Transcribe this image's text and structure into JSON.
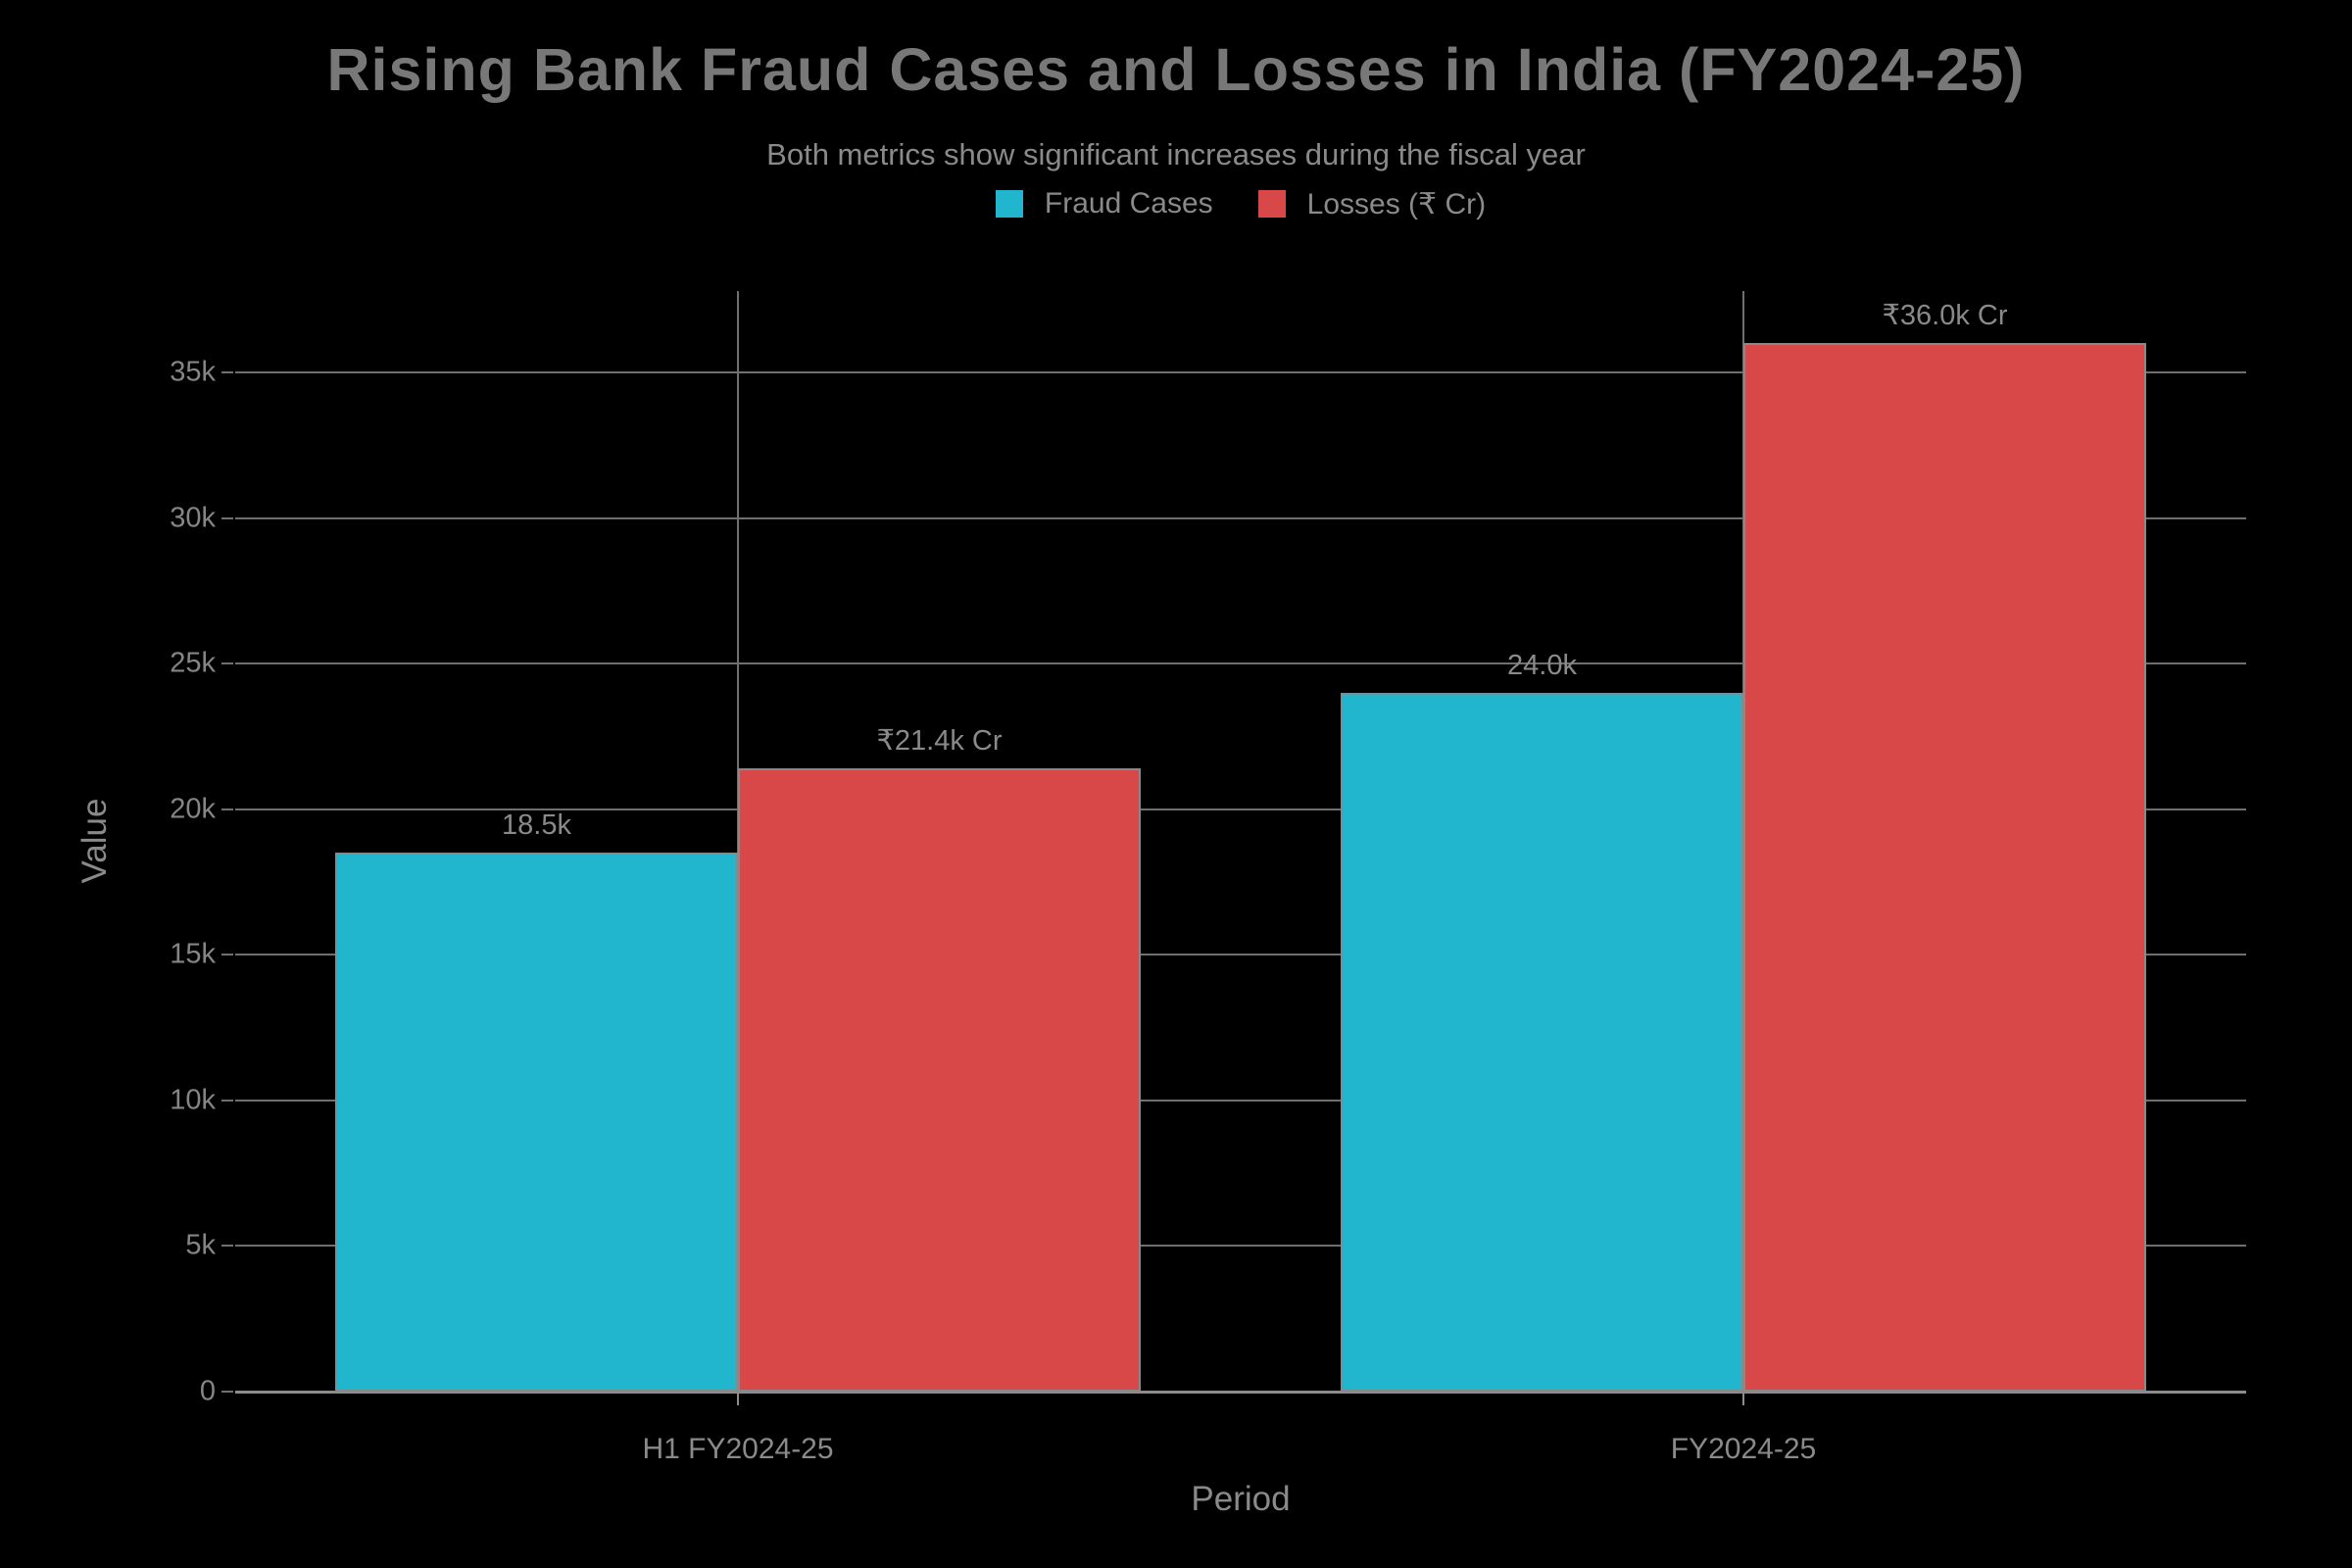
{
  "chart": {
    "title": "Rising Bank Fraud Cases and Losses in India (FY2024-25)",
    "subtitle": "Both metrics show significant increases during the fiscal year",
    "xlabel": "Period",
    "ylabel": "Value"
  },
  "legend": {
    "items": [
      {
        "label": "Fraud Cases",
        "color": "#22b5ce"
      },
      {
        "label": "Losses (₹ Cr)",
        "color": "#d94848"
      }
    ]
  },
  "colors": {
    "background": "#000000",
    "fraud_cases": "#22b5ce",
    "losses": "#d94848",
    "gridline": "#6f6f6f",
    "axis_line": "#8c8c8c",
    "bar_outline": "#88898a",
    "title_text": "#787878",
    "label_text": "#8a8a8a"
  },
  "chart_data": {
    "type": "bar",
    "title": "Rising Bank Fraud Cases and Losses in India (FY2024-25)",
    "subtitle": "Both metrics show significant increases during the fiscal year",
    "xlabel": "Period",
    "ylabel": "Value",
    "categories": [
      "H1 FY2024-25",
      "FY2024-25"
    ],
    "series": [
      {
        "name": "Fraud Cases",
        "color": "#22b5ce",
        "values": [
          18500,
          24000
        ],
        "data_labels": [
          "18.5k",
          "24.0k"
        ]
      },
      {
        "name": "Losses (₹ Cr)",
        "color": "#d94848",
        "values": [
          21400,
          36000
        ],
        "data_labels": [
          "₹21.4k Cr",
          "₹36.0k Cr"
        ]
      }
    ],
    "ylim": [
      0,
      37800
    ],
    "yticks": [
      0,
      5000,
      10000,
      15000,
      20000,
      25000,
      30000,
      35000
    ],
    "ytick_labels": [
      "0",
      "5k",
      "10k",
      "15k",
      "20k",
      "25k",
      "30k",
      "35k"
    ],
    "grid": "horizontal value gridlines and vertical category lines",
    "legend_position": "top-center",
    "background": "black"
  }
}
